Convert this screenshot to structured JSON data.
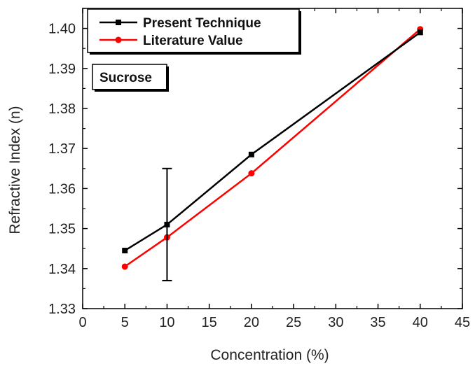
{
  "chart_data": {
    "type": "line",
    "xlabel": "Concentration (%)",
    "ylabel": "Refractive Index (n)",
    "xlim": [
      0,
      45
    ],
    "ylim": [
      1.33,
      1.405
    ],
    "xticks": [
      0,
      5,
      10,
      15,
      20,
      25,
      30,
      35,
      40,
      45
    ],
    "xtick_labels": [
      "0",
      "5",
      "10",
      "15",
      "20",
      "25",
      "30",
      "35",
      "40",
      "45"
    ],
    "yticks": [
      1.33,
      1.34,
      1.35,
      1.36,
      1.37,
      1.38,
      1.39,
      1.4
    ],
    "ytick_labels": [
      "1.33",
      "1.34",
      "1.35",
      "1.36",
      "1.37",
      "1.38",
      "1.39",
      "1.40"
    ],
    "grid": false,
    "legend_position": "top-left",
    "series": [
      {
        "name": "Present Technique",
        "color": "#000000",
        "marker": "square",
        "x": [
          5,
          10,
          20,
          40
        ],
        "y": [
          1.3445,
          1.351,
          1.3685,
          1.399
        ],
        "error": [
          null,
          0.014,
          null,
          null
        ]
      },
      {
        "name": "Literature Value",
        "color": "#ff0000",
        "marker": "circle",
        "x": [
          5,
          10,
          20,
          40
        ],
        "y": [
          1.3405,
          1.3478,
          1.3638,
          1.3998
        ]
      }
    ],
    "annotations": [
      {
        "text": "Sucrose"
      }
    ]
  }
}
